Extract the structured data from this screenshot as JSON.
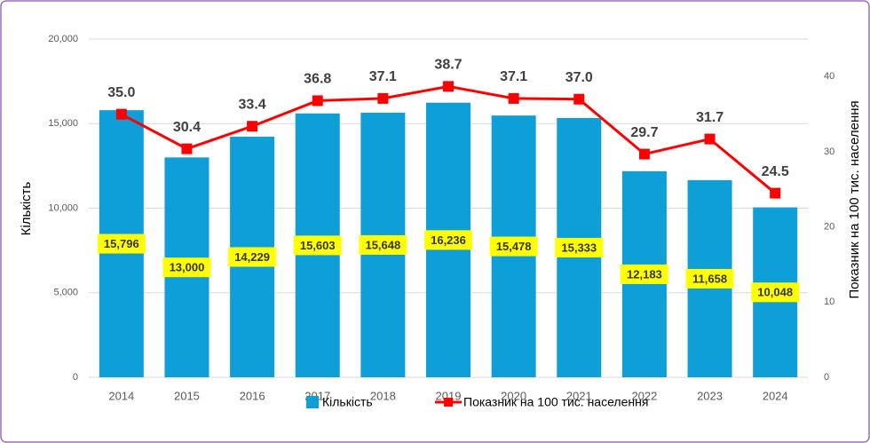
{
  "chart_data": {
    "type": "bar_line",
    "categories": [
      "2014",
      "2015",
      "2016",
      "2017",
      "2018",
      "2019",
      "2020",
      "2021",
      "2022",
      "2023",
      "2024"
    ],
    "series": [
      {
        "name": "Кількість",
        "type": "bar",
        "color": "#0f9fd8",
        "values": [
          15796,
          13000,
          14229,
          15603,
          15648,
          16236,
          15478,
          15333,
          12183,
          11658,
          10048
        ],
        "value_labels": [
          "15,796",
          "13,000",
          "14,229",
          "15,603",
          "15,648",
          "16,236",
          "15,478",
          "15,333",
          "12,183",
          "11,658",
          "10,048"
        ]
      },
      {
        "name": "Показник на 100 тис. населення",
        "type": "line",
        "axis": "y2",
        "color": "#ff0000",
        "values": [
          35.0,
          30.4,
          33.4,
          36.8,
          37.1,
          38.7,
          37.1,
          37.0,
          29.7,
          31.7,
          24.5
        ],
        "value_labels": [
          "35.0",
          "30.4",
          "33.4",
          "36.8",
          "37.1",
          "38.7",
          "37.1",
          "37.0",
          "29.7",
          "31.7",
          "24.5"
        ]
      }
    ],
    "ylabel": "Кількість",
    "y2label": "Показник на 100 тис. населення",
    "ylim": [
      0,
      20000
    ],
    "yticks": [
      0,
      {
        "value": 5000,
        "label": "5,000"
      },
      {
        "value": 10000,
        "label": "10,000"
      },
      {
        "value": 15000,
        "label": "15,000"
      },
      {
        "value": 20000,
        "label": "20,000"
      }
    ],
    "y2lim": [
      0,
      45
    ],
    "y2ticks": [
      0,
      10,
      20,
      30,
      40
    ],
    "grid": true,
    "legend": "bottom"
  }
}
